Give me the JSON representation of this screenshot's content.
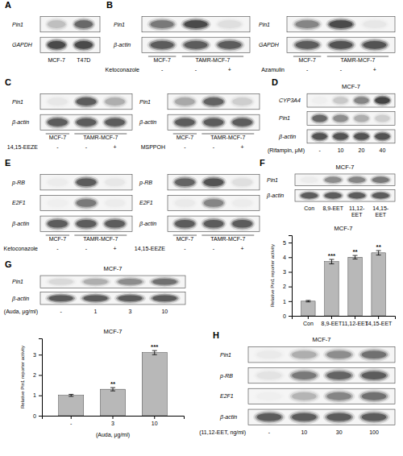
{
  "chart_data": [
    {
      "type": "blot",
      "annotations": [
        "A"
      ],
      "series": [
        {
          "name": "Pin1",
          "values": [
            0.45,
            0.78
          ]
        },
        {
          "name": "GAPDH",
          "values": [
            0.88,
            0.88
          ]
        }
      ],
      "categories": [
        "MCF-7",
        "T47D"
      ]
    },
    {
      "type": "blot",
      "annotations": [
        "B"
      ],
      "series": [
        {
          "name": "Pin1",
          "values": [
            0.72,
            0.88,
            0.28
          ]
        },
        {
          "name": "β-actin",
          "values": [
            0.82,
            0.82,
            0.82
          ]
        }
      ],
      "groups": [
        {
          "label": "MCF-7",
          "lanes": 1
        },
        {
          "label": "TAMR-MCF-7",
          "lanes": 2
        }
      ],
      "xlabel": "Ketoconazole",
      "categories": [
        "-",
        "-",
        "+"
      ]
    },
    {
      "type": "blot",
      "series": [
        {
          "name": "Pin1",
          "values": [
            0.68,
            0.88,
            0.22
          ]
        },
        {
          "name": "GAPDH",
          "values": [
            0.82,
            0.85,
            0.85
          ]
        }
      ],
      "groups": [
        {
          "label": "MCF-7",
          "lanes": 1
        },
        {
          "label": "TAMR-MCF-7",
          "lanes": 2
        }
      ],
      "xlabel": "Azamulin",
      "categories": [
        "-",
        "-",
        "+"
      ]
    },
    {
      "type": "blot",
      "annotations": [
        "C"
      ],
      "series": [
        {
          "name": "Pin1",
          "values": [
            0.22,
            0.82,
            0.52
          ]
        },
        {
          "name": "β-actin",
          "values": [
            0.82,
            0.82,
            0.82
          ]
        }
      ],
      "groups": [
        {
          "label": "MCF-7",
          "lanes": 1
        },
        {
          "label": "TAMR-MCF-7",
          "lanes": 2
        }
      ],
      "xlabel": "14,15-EEZE",
      "categories": [
        "-",
        "-",
        "+"
      ]
    },
    {
      "type": "blot",
      "series": [
        {
          "name": "Pin1",
          "values": [
            0.55,
            0.8,
            0.38
          ]
        },
        {
          "name": "β-actin",
          "values": [
            0.82,
            0.82,
            0.82
          ]
        }
      ],
      "groups": [
        {
          "label": "MCF-7",
          "lanes": 1
        },
        {
          "label": "TAMR-MCF-7",
          "lanes": 2
        }
      ],
      "xlabel": "MSPPOH",
      "categories": [
        "-",
        "-",
        "+"
      ]
    },
    {
      "type": "blot",
      "annotations": [
        "D"
      ],
      "title": "MCF-7",
      "series": [
        {
          "name": "CYP3A4",
          "values": [
            0.15,
            0.4,
            0.68,
            0.9
          ]
        },
        {
          "name": "Pin1",
          "values": [
            0.78,
            0.65,
            0.52,
            0.38
          ]
        },
        {
          "name": "β-actin",
          "values": [
            0.85,
            0.85,
            0.85,
            0.85
          ]
        }
      ],
      "xlabel": "(Rifampin, μM)",
      "categories": [
        "-",
        "10",
        "20",
        "40"
      ]
    },
    {
      "type": "blot",
      "annotations": [
        "E"
      ],
      "series": [
        {
          "name": "p-RB",
          "values": [
            0.18,
            0.82,
            0.22
          ]
        },
        {
          "name": "E2F1",
          "values": [
            0.15,
            0.72,
            0.18
          ]
        },
        {
          "name": "β-actin",
          "values": [
            0.82,
            0.82,
            0.82
          ]
        }
      ],
      "groups": [
        {
          "label": "MCF-7",
          "lanes": 1
        },
        {
          "label": "TAMR-MCF-7",
          "lanes": 2
        }
      ],
      "xlabel": "Ketoconazole",
      "categories": [
        "-",
        "-",
        "+"
      ]
    },
    {
      "type": "blot",
      "series": [
        {
          "name": "p-RB",
          "values": [
            0.8,
            0.85,
            0.28
          ]
        },
        {
          "name": "E2F1",
          "values": [
            0.2,
            0.68,
            0.18
          ]
        },
        {
          "name": "β-actin",
          "values": [
            0.82,
            0.82,
            0.82
          ]
        }
      ],
      "groups": [
        {
          "label": "MCF-7",
          "lanes": 1
        },
        {
          "label": "TAMR-MCF-7",
          "lanes": 2
        }
      ],
      "xlabel": "14,15-EEZE",
      "categories": [
        "-",
        "-",
        "+"
      ]
    },
    {
      "type": "blot",
      "annotations": [
        "F"
      ],
      "title": "MCF-7",
      "series": [
        {
          "name": "Pin1",
          "values": [
            0.18,
            0.65,
            0.68,
            0.72
          ]
        },
        {
          "name": "β-actin",
          "values": [
            0.82,
            0.82,
            0.82,
            0.82
          ]
        }
      ],
      "categories": [
        "Con",
        "8,9-EET",
        "11,12-\nEET",
        "14,15-\nEET"
      ]
    },
    {
      "type": "bar",
      "title": "MCF-7",
      "categories": [
        "Con",
        "8,9-EET",
        "11,12-EET",
        "14,15-EET"
      ],
      "values": [
        1.0,
        3.7,
        4.0,
        4.3
      ],
      "errors": [
        0.05,
        0.15,
        0.12,
        0.15
      ],
      "color": "#b8b8b8",
      "ylabel": "Relative Pin1 reporter activity",
      "ylim": [
        0,
        5.5
      ],
      "yticks": [
        0,
        1,
        2,
        3,
        4,
        5
      ],
      "annotations": [
        null,
        "***",
        "**",
        "**"
      ]
    },
    {
      "type": "blot",
      "annotations": [
        "G"
      ],
      "title": "MCF-7",
      "series": [
        {
          "name": "Pin1",
          "values": [
            0.32,
            0.52,
            0.65,
            0.75
          ]
        },
        {
          "name": "β-actin",
          "values": [
            0.82,
            0.82,
            0.82,
            0.82
          ]
        }
      ],
      "xlabel": "(Auda, μg/ml)",
      "categories": [
        "-",
        "1",
        "3",
        "10"
      ]
    },
    {
      "type": "bar",
      "title": "MCF-7",
      "categories": [
        "-",
        "3",
        "10"
      ],
      "values": [
        1.0,
        1.3,
        3.1
      ],
      "errors": [
        0.05,
        0.08,
        0.1
      ],
      "color": "#b8b8b8",
      "ylabel": "Relative Pin1 reporter activity",
      "xlabel": "(Auda, μg/ml)",
      "ylim": [
        0,
        3.8
      ],
      "yticks": [
        0,
        1,
        2,
        3
      ],
      "annotations": [
        null,
        "**",
        "***"
      ]
    },
    {
      "type": "blot",
      "annotations": [
        "H"
      ],
      "title": "MCF-7",
      "series": [
        {
          "name": "Pin1",
          "values": [
            0.2,
            0.52,
            0.65,
            0.75
          ]
        },
        {
          "name": "p-RB",
          "values": [
            0.25,
            0.72,
            0.8,
            0.82
          ]
        },
        {
          "name": "E2F1",
          "values": [
            0.15,
            0.5,
            0.68,
            0.75
          ]
        },
        {
          "name": "β-actin",
          "values": [
            0.82,
            0.82,
            0.82,
            0.82
          ]
        }
      ],
      "xlabel": "(11,12-EET, ng/ml)",
      "categories": [
        "-",
        "10",
        "30",
        "100"
      ]
    }
  ]
}
